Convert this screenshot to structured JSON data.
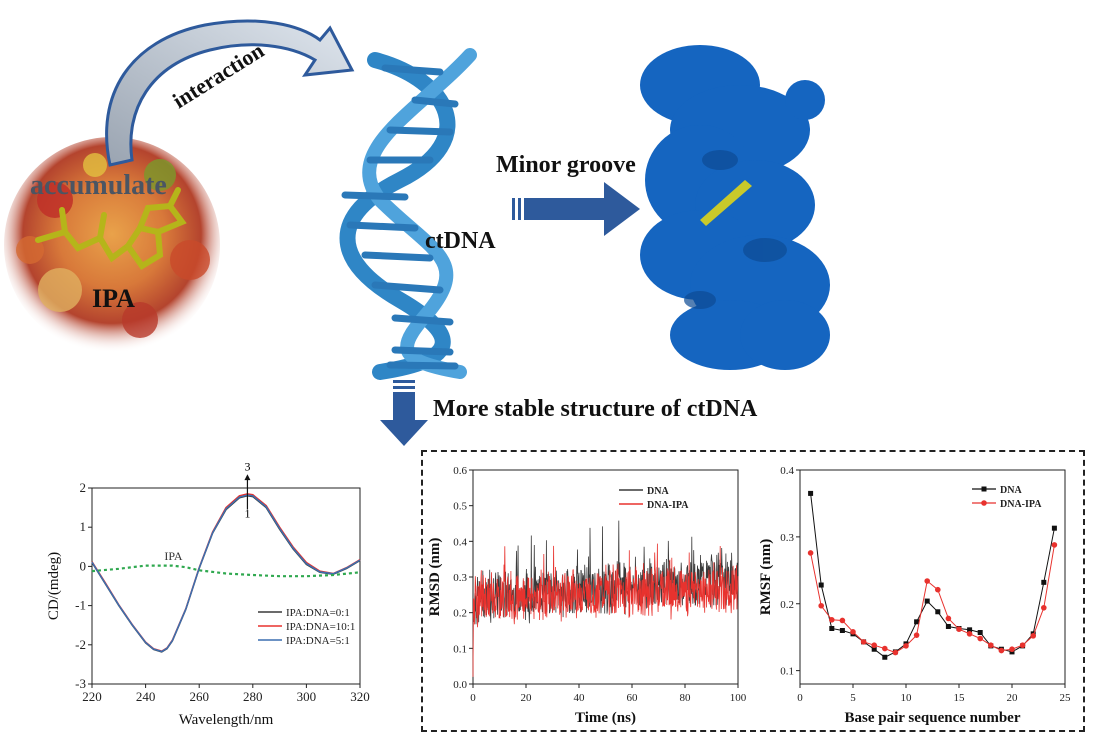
{
  "labels": {
    "interaction": "interaction",
    "accumulate": "accumulate",
    "ipa": "IPA",
    "ctdna": "ctDNA",
    "minor_groove": "Minor groove",
    "more_stable": "More stable structure of ctDNA"
  },
  "colors": {
    "dna_blue": "#2f86c6",
    "surface_blue": "#1565c0",
    "arrow_blue": "#2e5a9c",
    "ligand": "#b5b51a",
    "series_black": "#3a3a3a",
    "series_red": "#e8322e",
    "series_blue": "#3c6fb0",
    "ipa_green": "#2fa84f"
  },
  "chart_data": [
    {
      "type": "line",
      "xlabel": "Wavelength/nm",
      "ylabel": "CD/(mdeg)",
      "xlim": [
        220,
        320
      ],
      "ylim": [
        -3,
        2
      ],
      "xticks": [
        "220",
        "240",
        "260",
        "280",
        "300",
        "320"
      ],
      "yticks": [
        "-3",
        "-2",
        "-1",
        "0",
        "1",
        "2"
      ],
      "annotation_top": "3",
      "annotation_bottom": "1",
      "ipa_label": "IPA",
      "series": [
        {
          "name": "IPA:DNA=0:1",
          "color": "#3a3a3a",
          "x": [
            220,
            225,
            230,
            235,
            240,
            243,
            246,
            248,
            250,
            255,
            260,
            265,
            270,
            275,
            278,
            280,
            285,
            290,
            295,
            300,
            305,
            310,
            315,
            320
          ],
          "y": [
            0.1,
            -0.45,
            -1.0,
            -1.5,
            -1.95,
            -2.12,
            -2.18,
            -2.1,
            -1.9,
            -1.1,
            -0.05,
            0.85,
            1.45,
            1.75,
            1.8,
            1.78,
            1.5,
            0.95,
            0.45,
            0.05,
            -0.15,
            -0.2,
            -0.05,
            0.15
          ]
        },
        {
          "name": "IPA:DNA=10:1",
          "color": "#e8322e",
          "x": [
            220,
            225,
            230,
            235,
            240,
            243,
            246,
            248,
            250,
            255,
            260,
            265,
            270,
            275,
            278,
            280,
            285,
            290,
            295,
            300,
            305,
            310,
            315,
            320
          ],
          "y": [
            0.12,
            -0.42,
            -0.98,
            -1.48,
            -1.93,
            -2.1,
            -2.16,
            -2.08,
            -1.88,
            -1.08,
            -0.03,
            0.88,
            1.5,
            1.8,
            1.85,
            1.83,
            1.55,
            1.0,
            0.5,
            0.1,
            -0.12,
            -0.18,
            -0.03,
            0.17
          ]
        },
        {
          "name": "IPA:DNA=5:1",
          "color": "#3c6fb0",
          "x": [
            220,
            225,
            230,
            235,
            240,
            243,
            246,
            248,
            250,
            255,
            260,
            265,
            270,
            275,
            278,
            280,
            285,
            290,
            295,
            300,
            305,
            310,
            315,
            320
          ],
          "y": [
            0.11,
            -0.44,
            -0.99,
            -1.49,
            -1.94,
            -2.11,
            -2.17,
            -2.09,
            -1.89,
            -1.09,
            -0.04,
            0.86,
            1.47,
            1.77,
            1.82,
            1.8,
            1.52,
            0.97,
            0.47,
            0.07,
            -0.14,
            -0.19,
            -0.04,
            0.16
          ]
        },
        {
          "name": "IPA",
          "color": "#2fa84f",
          "dashed": true,
          "x": [
            220,
            230,
            240,
            250,
            255,
            260,
            270,
            280,
            290,
            300,
            310,
            320
          ],
          "y": [
            -0.12,
            -0.06,
            0.02,
            0.02,
            -0.02,
            -0.1,
            -0.18,
            -0.22,
            -0.25,
            -0.25,
            -0.22,
            -0.15
          ]
        }
      ]
    },
    {
      "type": "line",
      "xlabel": "Time (ns)",
      "ylabel": "RMSD (nm)",
      "xlim": [
        0,
        100
      ],
      "ylim": [
        0,
        0.6
      ],
      "xticks": [
        "0",
        "20",
        "40",
        "60",
        "80",
        "100"
      ],
      "yticks": [
        "0.0",
        "0.1",
        "0.2",
        "0.3",
        "0.4",
        "0.5",
        "0.6"
      ],
      "series": [
        {
          "name": "DNA",
          "color": "#3a3a3a",
          "mean_start": 0.24,
          "mean_end": 0.3,
          "spread": 0.07
        },
        {
          "name": "DNA-IPA",
          "color": "#e8322e",
          "mean_start": 0.24,
          "mean_end": 0.27,
          "spread": 0.07
        }
      ]
    },
    {
      "type": "line",
      "xlabel": "Base pair sequence number",
      "ylabel": "RMSF (nm)",
      "xlim": [
        0,
        25
      ],
      "ylim": [
        0.08,
        0.4
      ],
      "xticks": [
        "0",
        "5",
        "10",
        "15",
        "20",
        "25"
      ],
      "yticks": [
        "0.1",
        "0.2",
        "0.3",
        "0.4"
      ],
      "series": [
        {
          "name": "DNA",
          "color": "#111111",
          "marker": "square",
          "x": [
            1,
            2,
            3,
            4,
            5,
            6,
            7,
            8,
            9,
            10,
            11,
            12,
            13,
            14,
            15,
            16,
            17,
            18,
            19,
            20,
            21,
            22,
            23,
            24
          ],
          "y": [
            0.365,
            0.228,
            0.163,
            0.16,
            0.155,
            0.143,
            0.132,
            0.12,
            0.128,
            0.14,
            0.173,
            0.204,
            0.188,
            0.166,
            0.163,
            0.161,
            0.157,
            0.137,
            0.132,
            0.128,
            0.137,
            0.155,
            0.232,
            0.313
          ]
        },
        {
          "name": "DNA-IPA",
          "color": "#e8322e",
          "marker": "circle",
          "x": [
            1,
            2,
            3,
            4,
            5,
            6,
            7,
            8,
            9,
            10,
            11,
            12,
            13,
            14,
            15,
            16,
            17,
            18,
            19,
            20,
            21,
            22,
            23,
            24
          ],
          "y": [
            0.276,
            0.197,
            0.176,
            0.175,
            0.158,
            0.143,
            0.138,
            0.133,
            0.127,
            0.137,
            0.153,
            0.234,
            0.221,
            0.178,
            0.162,
            0.155,
            0.148,
            0.138,
            0.13,
            0.132,
            0.138,
            0.152,
            0.194,
            0.288
          ]
        }
      ]
    }
  ]
}
